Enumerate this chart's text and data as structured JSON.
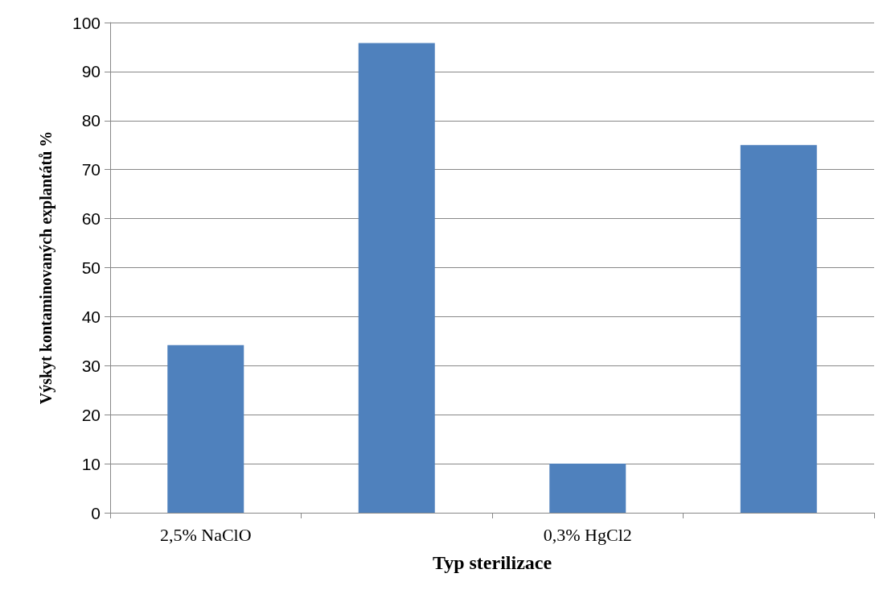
{
  "chart_data": {
    "type": "bar",
    "xlabel": "Typ sterilizace",
    "ylabel": "Výskyt kontaminovaných explantátů %",
    "categories": [
      "2,5% NaClO",
      null,
      "0,3% HgCl2",
      null
    ],
    "values": [
      34.2,
      95.8,
      10,
      75
    ],
    "color": "#4f81bd",
    "ylim": [
      0,
      100
    ],
    "yticks": [
      0,
      10,
      20,
      30,
      40,
      50,
      60,
      70,
      80,
      90,
      100
    ],
    "grid": "y"
  }
}
